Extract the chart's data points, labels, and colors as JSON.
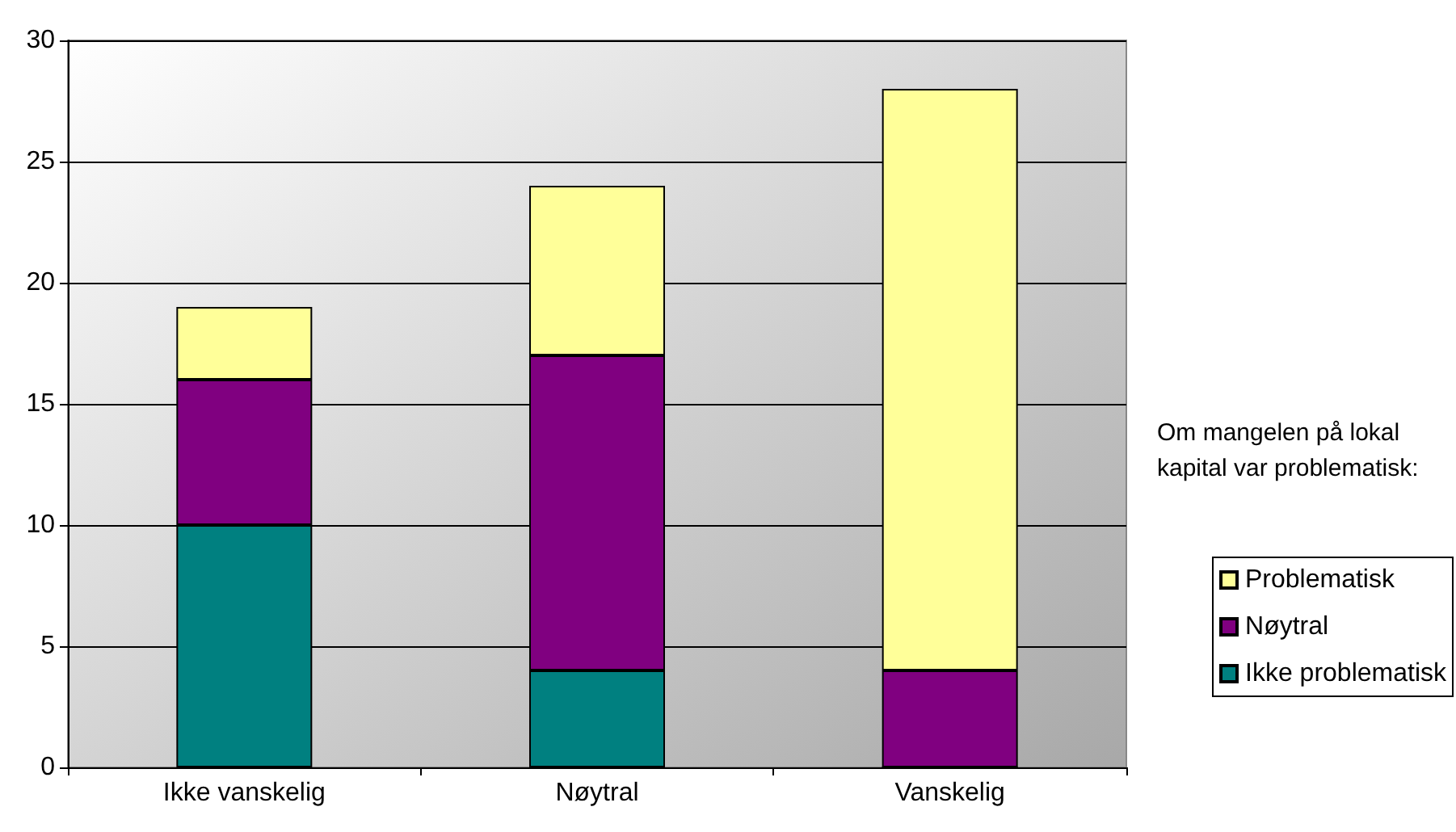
{
  "chart_data": {
    "type": "bar",
    "stacked": true,
    "categories": [
      "Ikke vanskelig",
      "Nøytral",
      "Vanskelig"
    ],
    "series": [
      {
        "name": "Ikke problematisk",
        "color": "#008080",
        "values": [
          10,
          4,
          0
        ]
      },
      {
        "name": "Nøytral",
        "color": "#800080",
        "values": [
          6,
          13,
          4
        ]
      },
      {
        "name": "Problematisk",
        "color": "#ffff99",
        "values": [
          3,
          7,
          24
        ]
      }
    ],
    "ylim": [
      0,
      30
    ],
    "yticks": [
      0,
      5,
      10,
      15,
      20,
      25,
      30
    ],
    "grid": "y",
    "legend": "right",
    "legend_title": "Om mangelen på lokal kapital var problematisk:"
  }
}
